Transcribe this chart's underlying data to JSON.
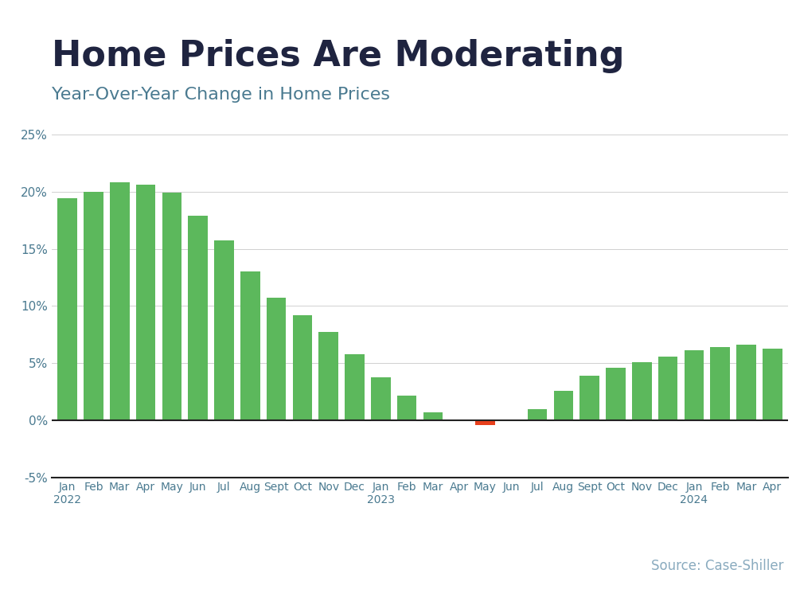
{
  "title": "Home Prices Are Moderating",
  "subtitle": "Year-Over-Year Change in Home Prices",
  "source": "Source: Case-Shiller",
  "categories": [
    "Jan\n2022",
    "Feb",
    "Mar",
    "Apr",
    "May",
    "Jun",
    "Jul",
    "Aug",
    "Sept",
    "Oct",
    "Nov",
    "Dec",
    "Jan\n2023",
    "Feb",
    "Mar",
    "Apr",
    "May",
    "Jun",
    "Jul",
    "Aug",
    "Sept",
    "Oct",
    "Nov",
    "Dec",
    "Jan\n2024",
    "Feb",
    "Mar",
    "Apr"
  ],
  "values": [
    19.4,
    20.0,
    20.8,
    20.6,
    19.9,
    17.9,
    15.7,
    13.0,
    10.7,
    9.2,
    7.7,
    5.8,
    3.8,
    2.2,
    0.7,
    0.0,
    -0.4,
    0.0,
    1.0,
    2.6,
    3.9,
    4.6,
    5.1,
    5.6,
    6.1,
    6.4,
    6.6,
    6.3
  ],
  "bar_color_positive": "#5cb85c",
  "bar_color_negative": "#e8401c",
  "background_color": "#ffffff",
  "title_color": "#1f2440",
  "subtitle_color": "#4a7a90",
  "source_color": "#8aabbf",
  "axis_label_color": "#4a7a90",
  "grid_color": "#d0d0d0",
  "top_stripe_color": "#3ab5e6",
  "ylim": [
    -5,
    25
  ],
  "yticks": [
    -5,
    0,
    5,
    10,
    15,
    20,
    25
  ],
  "title_fontsize": 32,
  "subtitle_fontsize": 16,
  "source_fontsize": 12,
  "tick_fontsize": 11
}
